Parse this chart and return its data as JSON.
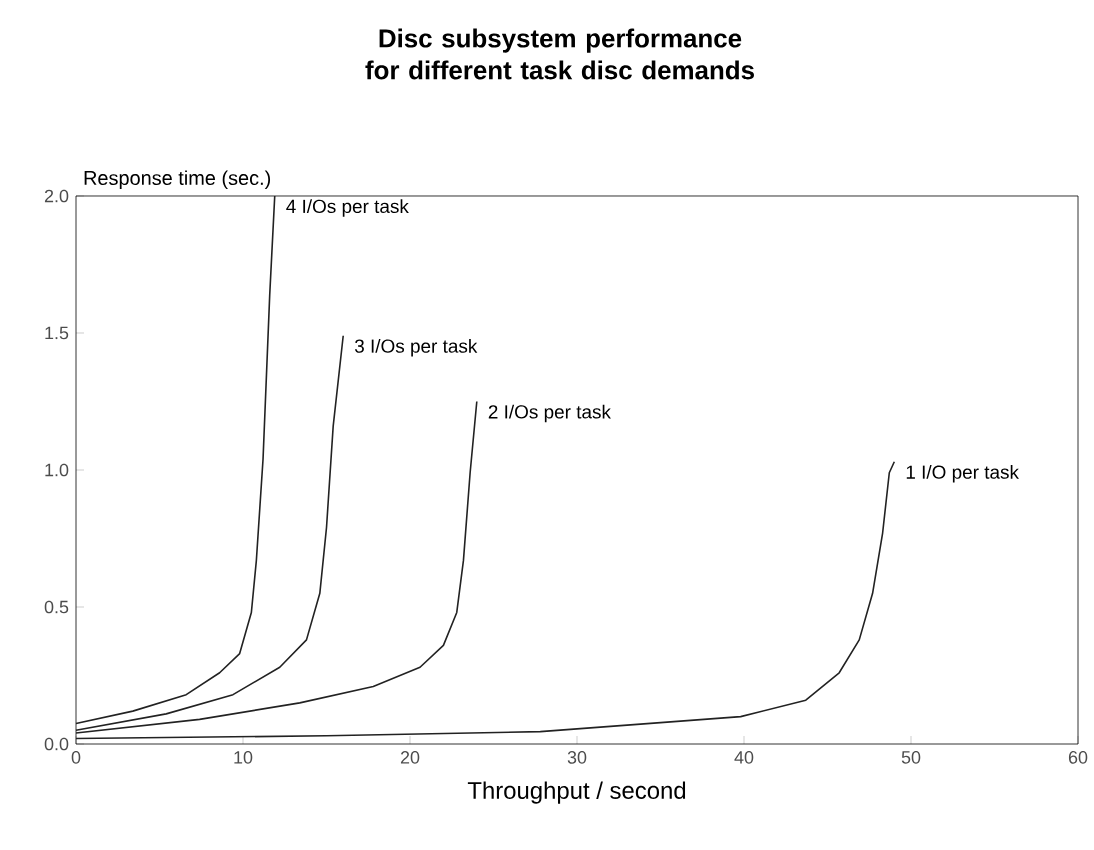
{
  "chart_data": {
    "type": "line",
    "title": "Disc subsystem performance for different task disc demands",
    "xlabel": "Throughput / second",
    "ylabel": "Response time (sec.)",
    "xlim": [
      0,
      60
    ],
    "ylim": [
      0,
      2
    ],
    "xticks": [
      0,
      10,
      20,
      30,
      40,
      50,
      60
    ],
    "yticks": [
      {
        "value": 0,
        "label": "0.0"
      },
      {
        "value": 0.5,
        "label": "0.5"
      },
      {
        "value": 1,
        "label": "1.0"
      },
      1.5,
      {
        "value": 2,
        "label": "2.0"
      }
    ],
    "grid": false,
    "legend": false,
    "marker": "none",
    "line_style": "solid",
    "series": [
      {
        "name": "4 I/Os per task",
        "color": "#222222",
        "x": [
          0,
          3.4,
          6.6,
          8.6,
          9.8,
          10.5,
          10.8,
          11.2,
          11.6,
          11.9
        ],
        "values": [
          0.075,
          0.12,
          0.18,
          0.26,
          0.33,
          0.48,
          0.67,
          1.04,
          1.64,
          2.0
        ]
      },
      {
        "name": "3 I/Os per task",
        "color": "#222222",
        "x": [
          0,
          5.4,
          9.4,
          12.2,
          13.8,
          14.6,
          15.0,
          15.4,
          16.0
        ],
        "values": [
          0.05,
          0.11,
          0.18,
          0.28,
          0.38,
          0.55,
          0.79,
          1.16,
          1.49
        ]
      },
      {
        "name": "2 I/Os per task",
        "color": "#222222",
        "x": [
          0,
          7.4,
          13.4,
          17.8,
          20.6,
          22.0,
          22.8,
          23.2,
          23.6,
          24.0
        ],
        "values": [
          0.04,
          0.09,
          0.15,
          0.21,
          0.28,
          0.36,
          0.48,
          0.67,
          0.99,
          1.25
        ]
      },
      {
        "name": "1 I/O per task",
        "color": "#222222",
        "x": [
          0,
          15,
          27.8,
          39.8,
          43.7,
          45.7,
          46.9,
          47.7,
          48.3,
          48.7,
          49.0
        ],
        "values": [
          0.02,
          0.03,
          0.045,
          0.1,
          0.16,
          0.26,
          0.38,
          0.55,
          0.77,
          0.99,
          1.03
        ]
      }
    ]
  }
}
